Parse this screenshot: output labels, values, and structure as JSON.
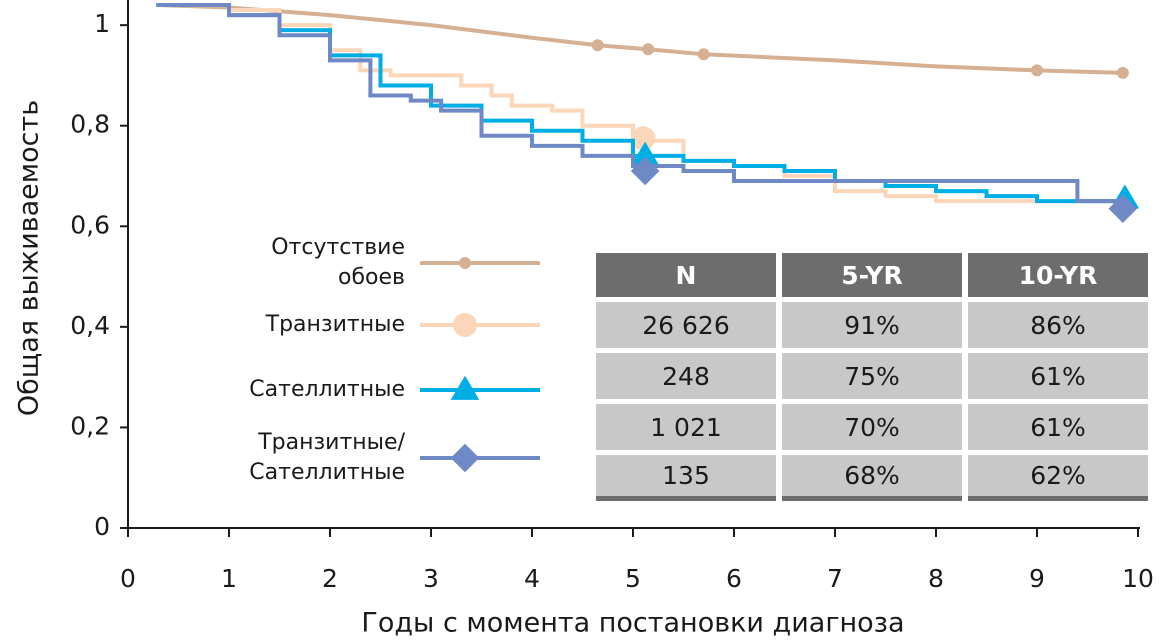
{
  "chart_data": {
    "type": "line",
    "x_label": "Годы с момента постановки диагноза",
    "y_label": "Общая выживаемость",
    "xlim": [
      0,
      10
    ],
    "xticks": [
      0,
      1,
      2,
      3,
      4,
      5,
      6,
      7,
      8,
      9,
      10
    ],
    "ylim": [
      0,
      1.05
    ],
    "yticks": [
      0,
      {
        "value": 0.2,
        "label": "0,2"
      },
      {
        "value": 0.4,
        "label": "0,4"
      },
      {
        "value": 0.6,
        "label": "0,6"
      },
      {
        "value": 0.8,
        "label": "0,8"
      },
      1
    ],
    "series": [
      {
        "name": "Отсутствие обоев",
        "color": "#d6b093",
        "step": false,
        "marker": "circle",
        "marker_size": 6,
        "x": [
          0.3,
          1,
          2,
          3,
          4,
          4.65,
          5.15,
          5.7,
          7,
          8,
          9,
          9.85
        ],
        "values": [
          1.04,
          1.035,
          1.02,
          1.0,
          0.975,
          0.96,
          0.952,
          0.942,
          0.93,
          0.918,
          0.91,
          0.905
        ],
        "points": {
          "x": [
            4.65,
            5.15,
            5.7,
            9,
            9.85
          ],
          "values": [
            0.96,
            0.952,
            0.942,
            0.91,
            0.905
          ]
        }
      },
      {
        "name": "Транзитные",
        "color": "#fbd6b8",
        "step": true,
        "marker": "circle",
        "marker_size": 12,
        "x": [
          0.3,
          0.7,
          1,
          1.5,
          2,
          2.3,
          2.6,
          3,
          3.3,
          3.6,
          3.8,
          4.2,
          4.5,
          5,
          5.2,
          5.5,
          6,
          6.5,
          7,
          7.5,
          8,
          9.85
        ],
        "values": [
          1.04,
          1.04,
          1.03,
          1.0,
          0.95,
          0.91,
          0.9,
          0.9,
          0.88,
          0.86,
          0.84,
          0.83,
          0.8,
          0.78,
          0.77,
          0.73,
          0.72,
          0.7,
          0.67,
          0.66,
          0.65,
          0.65
        ],
        "points": {
          "x": [
            5.1
          ],
          "values": [
            0.775
          ]
        }
      },
      {
        "name": "Сателлитные",
        "color": "#00aee6",
        "step": true,
        "marker": "triangle",
        "marker_size": 11,
        "x": [
          0.3,
          0.7,
          1,
          1.5,
          2,
          2.5,
          3,
          3.5,
          4,
          4.5,
          5,
          5.5,
          6,
          6.5,
          7,
          7.5,
          8,
          8.5,
          9,
          9.85
        ],
        "values": [
          1.04,
          1.04,
          1.02,
          0.99,
          0.94,
          0.88,
          0.84,
          0.81,
          0.79,
          0.77,
          0.74,
          0.73,
          0.72,
          0.71,
          0.69,
          0.68,
          0.67,
          0.66,
          0.65,
          0.645
        ],
        "points": {
          "x": [
            5.12,
            9.87
          ],
          "values": [
            0.74,
            0.655
          ]
        }
      },
      {
        "name": "Транзитные/ Сателлитные",
        "color": "#6f89c7",
        "step": true,
        "marker": "diamond",
        "marker_size": 11,
        "x": [
          0.3,
          0.7,
          1,
          1.5,
          2,
          2.4,
          2.8,
          3.1,
          3.5,
          4,
          4.5,
          5,
          5.5,
          6,
          7,
          8,
          9,
          9.4,
          9.85
        ],
        "values": [
          1.04,
          1.04,
          1.02,
          0.98,
          0.93,
          0.86,
          0.85,
          0.83,
          0.78,
          0.76,
          0.74,
          0.72,
          0.71,
          0.69,
          0.69,
          0.69,
          0.69,
          0.65,
          0.65
        ],
        "points": {
          "x": [
            5.12,
            9.85
          ],
          "values": [
            0.71,
            0.635
          ]
        }
      }
    ]
  },
  "table": {
    "columns": [
      "N",
      "5-YR",
      "10-YR"
    ],
    "rows": [
      [
        "26 626",
        "91%",
        "86%"
      ],
      [
        "248",
        "75%",
        "61%"
      ],
      [
        "1 021",
        "70%",
        "61%"
      ],
      [
        "135",
        "68%",
        "62%"
      ]
    ]
  }
}
